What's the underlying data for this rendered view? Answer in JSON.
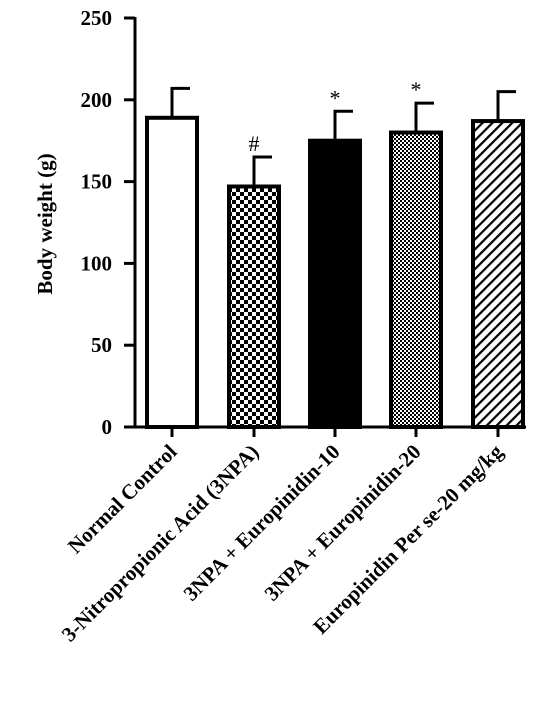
{
  "chart_data": {
    "type": "bar",
    "ylabel": "Body weight (g)",
    "ylim": [
      0,
      250
    ],
    "yticks": [
      0,
      50,
      100,
      150,
      200,
      250
    ],
    "grid": false,
    "categories": [
      "Normal Control",
      "3-Nitropropionic Acid (3NPA)",
      "3NPA + Europinidin-10",
      "3NPA + Europinidin-20",
      "Europinidin Per se-20 mg/kg"
    ],
    "values": [
      189,
      147,
      175,
      180,
      187
    ],
    "errors": [
      18,
      18,
      18,
      18,
      18
    ],
    "annotations": [
      "",
      "#",
      "*",
      "*",
      ""
    ],
    "fills": [
      "white",
      "checker",
      "solid-black",
      "fine-checker",
      "diagonal-stripes"
    ]
  }
}
